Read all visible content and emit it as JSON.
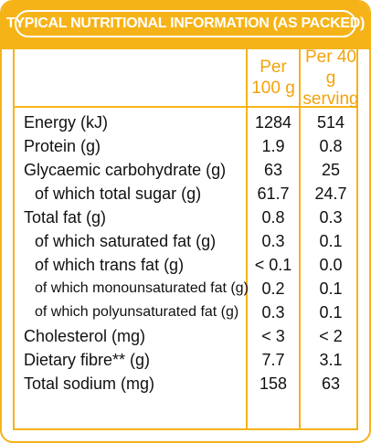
{
  "title": "TYPICAL NUTRITIONAL INFORMATION (AS PACKED)",
  "columns": {
    "per_100g": "Per\n100 g",
    "per_serving": "Per 40 g\nserving"
  },
  "rows": [
    {
      "label": "Energy (kJ)",
      "per_100g": "1284",
      "per_serving": "514"
    },
    {
      "label": "Protein (g)",
      "per_100g": "1.9",
      "per_serving": "0.8"
    },
    {
      "label": "Glycaemic carbohydrate (g)",
      "per_100g": "63",
      "per_serving": "25"
    },
    {
      "label": "of which total sugar (g)",
      "per_100g": "61.7",
      "per_serving": "24.7"
    },
    {
      "label": "Total fat (g)",
      "per_100g": "0.8",
      "per_serving": "0.3"
    },
    {
      "label": "of which saturated fat (g)",
      "per_100g": "0.3",
      "per_serving": "0.1"
    },
    {
      "label": "of which trans fat (g)",
      "per_100g": "< 0.1",
      "per_serving": "0.0"
    },
    {
      "label": "of which monounsaturated fat (g)",
      "per_100g": "0.2",
      "per_serving": "0.1"
    },
    {
      "label": "of which polyunsaturated fat (g)",
      "per_100g": "0.3",
      "per_serving": "0.1"
    },
    {
      "label": "Cholesterol (mg)",
      "per_100g": "< 3",
      "per_serving": "< 2"
    },
    {
      "label": "Dietary fibre** (g)",
      "per_100g": "7.7",
      "per_serving": "3.1"
    },
    {
      "label": "Total sodium (mg)",
      "per_100g": "158",
      "per_serving": "63"
    }
  ],
  "colors": {
    "accent": "#f6b318",
    "header_text": "#f2a30c",
    "body_text": "#111111"
  }
}
